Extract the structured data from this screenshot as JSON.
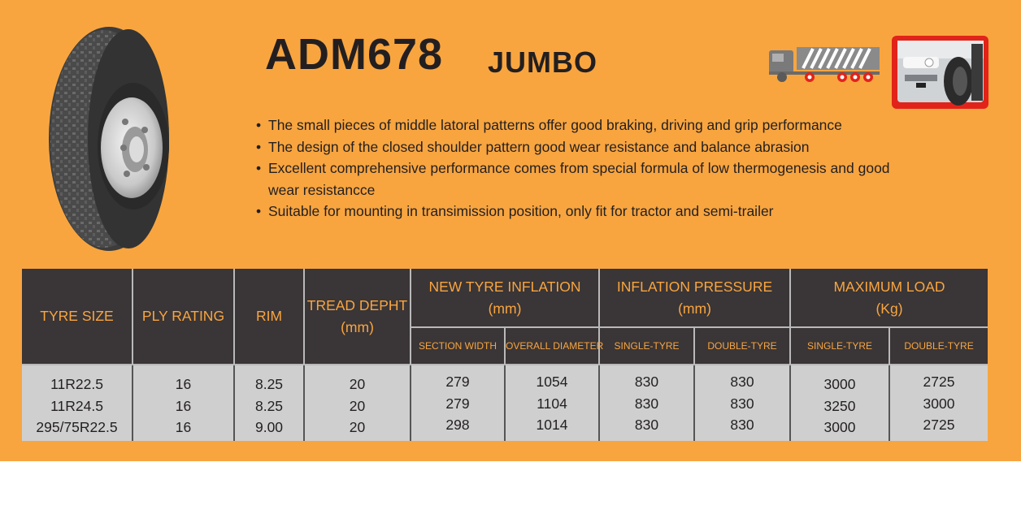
{
  "title": {
    "model": "ADM678",
    "variant": "JUMBO"
  },
  "features": [
    "The small pieces of middle latoral patterns offer good braking, driving and grip performance",
    "The design of the closed shoulder pattern good wear resistance and balance abrasion",
    "Excellent comprehensive performance comes from special formula of low thermogenesis and good wear resistancce",
    "Suitable for mounting in transimission position, only fit for tractor and semi-trailer"
  ],
  "table": {
    "headers": {
      "tyre_size": "TYRE SIZE",
      "ply_rating": "PLY RATING",
      "rim": "RIM",
      "tread_depth": "TREAD DEPHT",
      "tread_depth_unit": "(mm)",
      "new_tyre_inflation": "NEW TYRE INFLATION",
      "new_tyre_inflation_unit": "(mm)",
      "inflation_pressure": "INFLATION PRESSURE",
      "inflation_pressure_unit": "(mm)",
      "maximum_load": "MAXIMUM LOAD",
      "maximum_load_unit": "(Kg)",
      "section_width": "SECTION WIDTH",
      "overall_diameter": "OVERALL DIAMETER",
      "pressure_single": "SINGLE-TYRE",
      "pressure_double": "DOUBLE-TYRE",
      "load_single": "SINGLE-TYRE",
      "load_double": "DOUBLE-TYRE"
    },
    "rows": [
      {
        "tyre_size": "11R22.5",
        "ply_rating": "16",
        "rim": "8.25",
        "tread_depth": "20",
        "section_width": "279",
        "overall_diameter": "1054",
        "pressure_single": "830",
        "pressure_double": "830",
        "load_single": "3000",
        "load_double": "2725"
      },
      {
        "tyre_size": "11R24.5",
        "ply_rating": "16",
        "rim": "8.25",
        "tread_depth": "20",
        "section_width": "279",
        "overall_diameter": "1104",
        "pressure_single": "830",
        "pressure_double": "830",
        "load_single": "3250",
        "load_double": "3000"
      },
      {
        "tyre_size": "295/75R22.5",
        "ply_rating": "16",
        "rim": "9.00",
        "tread_depth": "20",
        "section_width": "298",
        "overall_diameter": "1014",
        "pressure_single": "830",
        "pressure_double": "830",
        "load_single": "3000",
        "load_double": "2725"
      }
    ]
  },
  "icons": {
    "tyre": "tyre-image",
    "truck": "truck-axle-icon",
    "photo": "truck-wheel-photo"
  },
  "colors": {
    "background": "#f8a540",
    "header": "#3a3536",
    "header_text": "#f8a540",
    "body_cell": "#cfcfd0",
    "photo_frame": "#e2231a"
  }
}
